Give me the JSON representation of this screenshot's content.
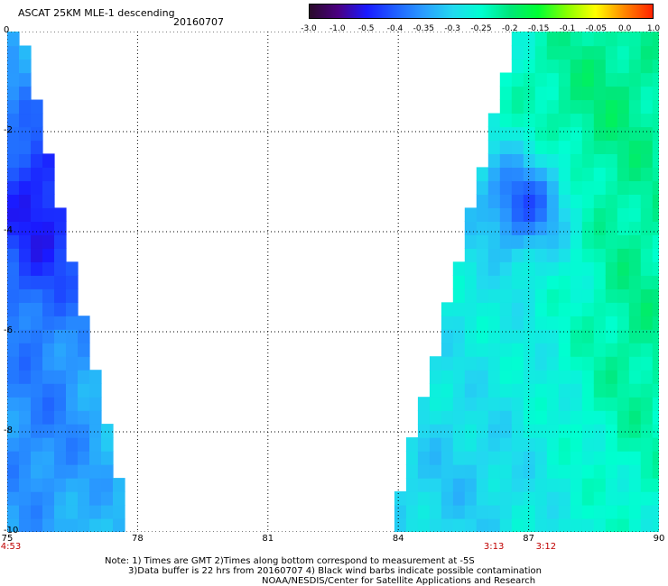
{
  "header": {
    "title": "ASCAT 25KM MLE-1 descending",
    "date": "20160707"
  },
  "colorbar": {
    "labels": [
      "-3.0",
      "-1.0",
      "-0.5",
      "-0.4",
      "-0.35",
      "-0.3",
      "-0.25",
      "-0.2",
      "-0.15",
      "-0.1",
      "-0.05",
      "0.0",
      "1.0"
    ],
    "colors": [
      "#2a0a2a",
      "#4b0082",
      "#1a1aff",
      "#1f5fff",
      "#2a9dff",
      "#22d8f0",
      "#00ffd0",
      "#00e87a",
      "#00ff33",
      "#88ff00",
      "#ffff00",
      "#ff8800",
      "#ff2200"
    ]
  },
  "map": {
    "lat_labels": [
      "0",
      "-2",
      "-4",
      "-6",
      "-8",
      "-10"
    ],
    "lon_labels": [
      "75",
      "78",
      "81",
      "84",
      "87",
      "90"
    ],
    "time_labels": [
      {
        "text": "4:53",
        "lon": 75
      },
      {
        "text": "3:13",
        "lon": 86.2
      },
      {
        "text": "3:12",
        "lon": 87.4
      }
    ],
    "lon_range": [
      75,
      90
    ],
    "lat_range": [
      -10,
      0
    ]
  },
  "notes": {
    "line1": "Note: 1) Times are GMT 2)Times along bottom correspond to measurement at -5S",
    "line2": "3)Data buffer is 22 hrs from 20160707 4) Black wind barbs indicate possible contamination",
    "line3": "NOAA/NESDIS/Center for Satellite Applications and Research"
  }
}
